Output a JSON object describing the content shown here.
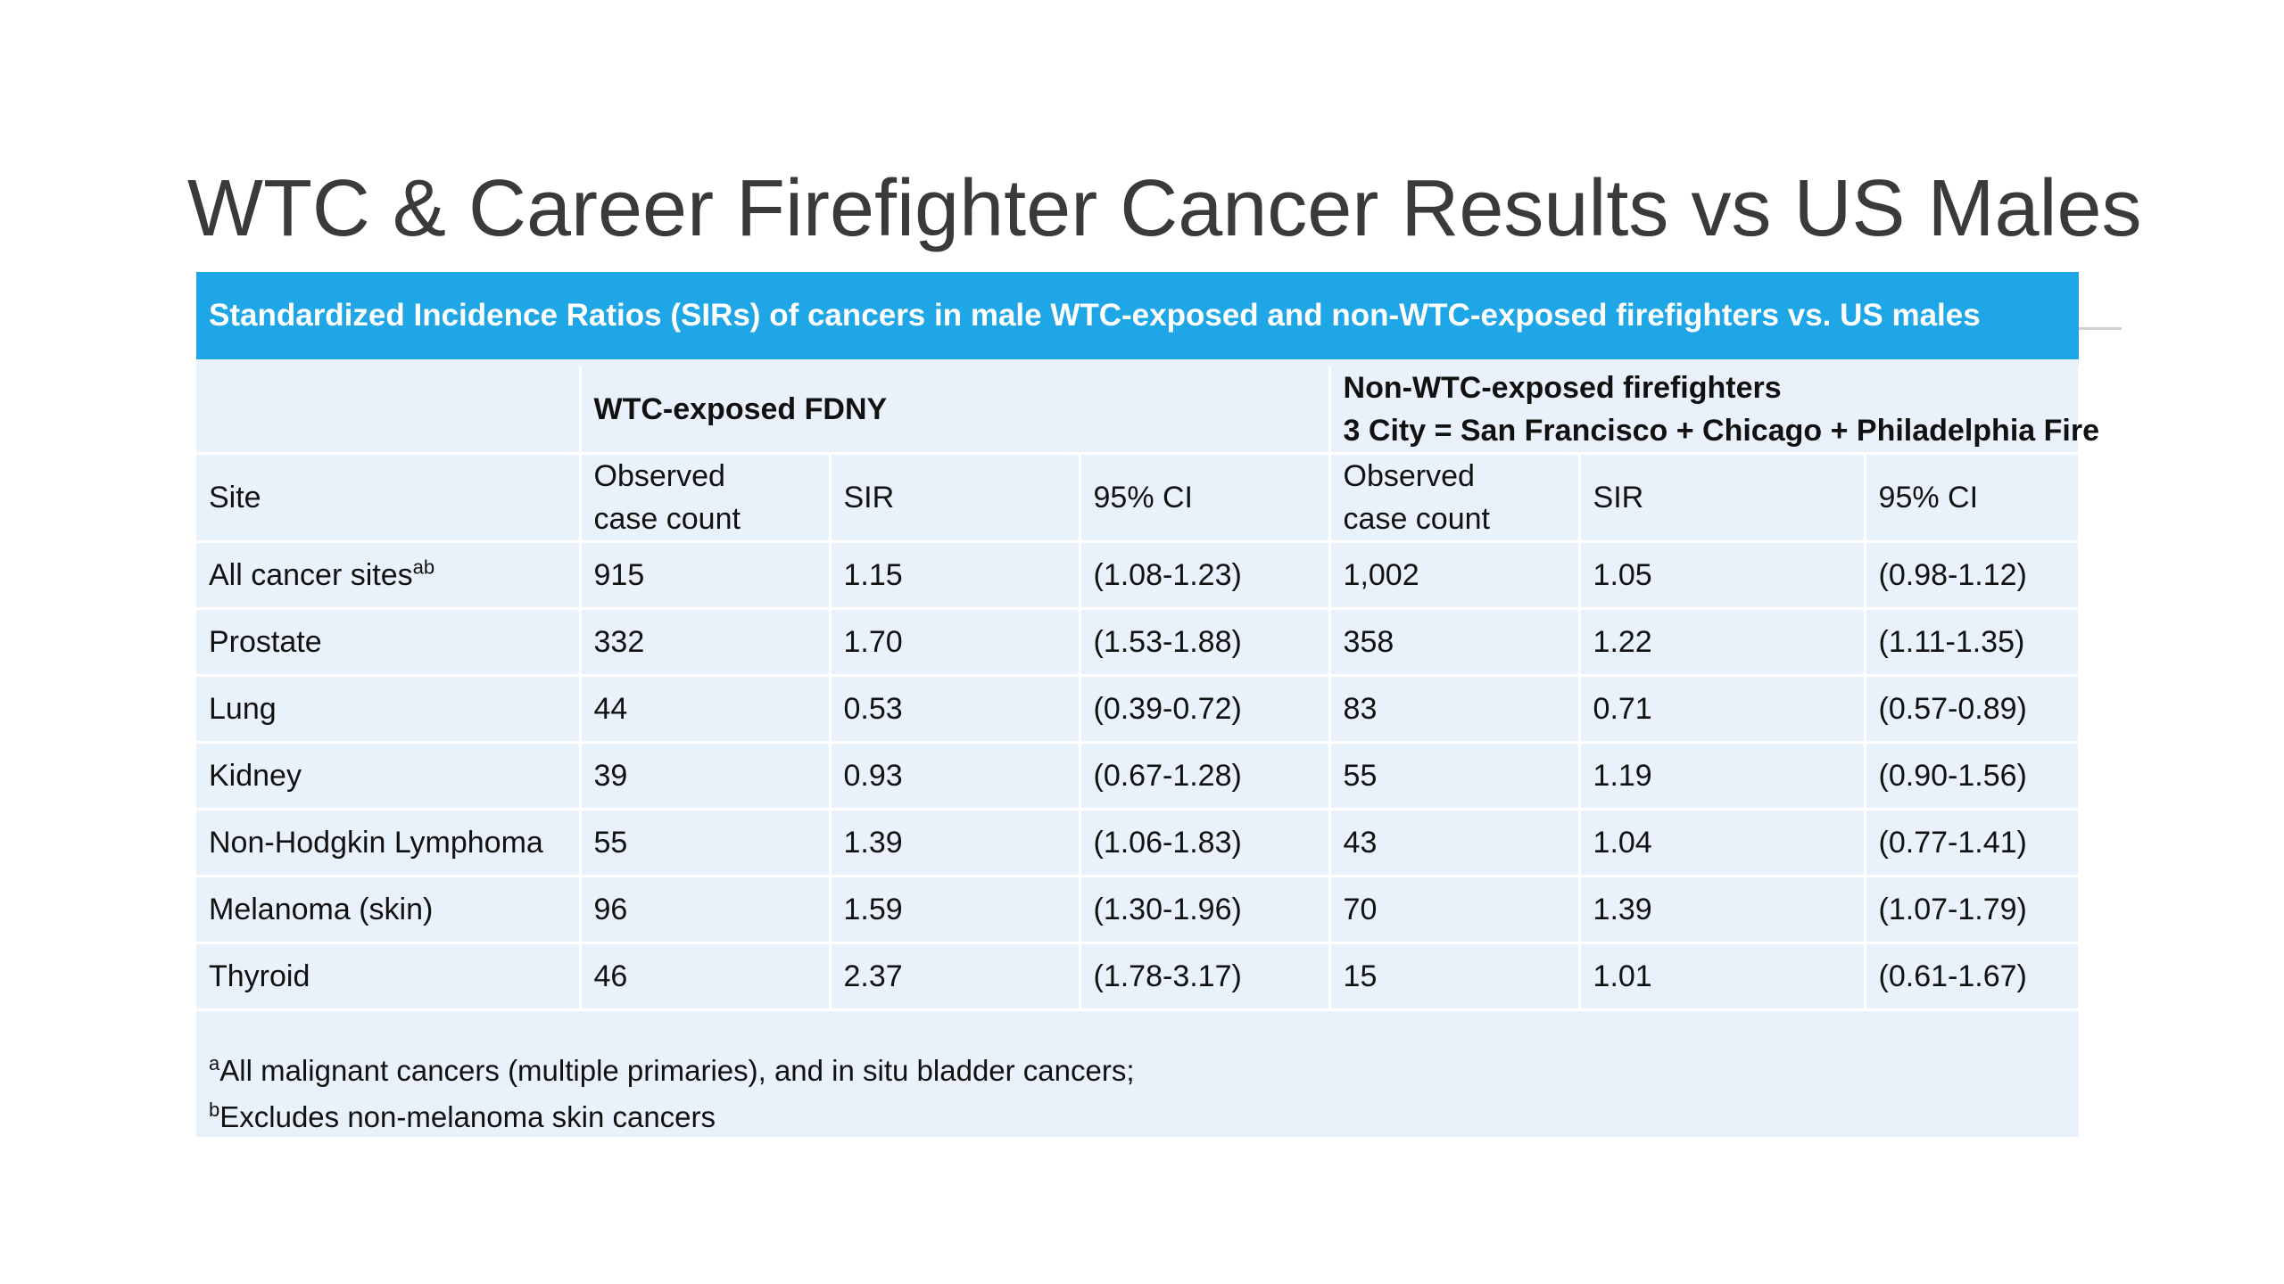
{
  "slide": {
    "title": "WTC & Career Firefighter Cancer Results vs US Males"
  },
  "banner": {
    "text": "Standardized Incidence Ratios (SIRs) of cancers in male WTC-exposed and non-WTC-exposed firefighters vs. US males",
    "color": "#1ea6e6"
  },
  "table": {
    "group_headers": {
      "wtc": "WTC-exposed FDNY",
      "non_wtc_line1": "Non-WTC-exposed firefighters",
      "non_wtc_line2": "3 City = San Francisco + Chicago + Philadelphia Fire"
    },
    "column_headers": {
      "site": "Site",
      "observed_line1": "Observed",
      "observed_line2": "case count",
      "sir": "SIR",
      "ci": "95% CI"
    },
    "rows": [
      {
        "site": "All cancer sites",
        "site_sup": "ab",
        "wtc_count": "915",
        "wtc_sir": "1.15",
        "wtc_ci": "(1.08-1.23)",
        "non_count": "1,002",
        "non_sir": "1.05",
        "non_ci": "(0.98-1.12)"
      },
      {
        "site": "Prostate",
        "site_sup": "",
        "wtc_count": "332",
        "wtc_sir": "1.70",
        "wtc_ci": "(1.53-1.88)",
        "non_count": "358",
        "non_sir": "1.22",
        "non_ci": "(1.11-1.35)"
      },
      {
        "site": "Lung",
        "site_sup": "",
        "wtc_count": "44",
        "wtc_sir": "0.53",
        "wtc_ci": "(0.39-0.72)",
        "non_count": "83",
        "non_sir": "0.71",
        "non_ci": "(0.57-0.89)"
      },
      {
        "site": "Kidney",
        "site_sup": "",
        "wtc_count": "39",
        "wtc_sir": "0.93",
        "wtc_ci": "(0.67-1.28)",
        "non_count": "55",
        "non_sir": "1.19",
        "non_ci": "(0.90-1.56)"
      },
      {
        "site": "Non-Hodgkin Lymphoma",
        "site_sup": "",
        "wtc_count": "55",
        "wtc_sir": "1.39",
        "wtc_ci": "(1.06-1.83)",
        "non_count": "43",
        "non_sir": "1.04",
        "non_ci": "(0.77-1.41)"
      },
      {
        "site": "Melanoma (skin)",
        "site_sup": "",
        "wtc_count": "96",
        "wtc_sir": "1.59",
        "wtc_ci": "(1.30-1.96)",
        "non_count": "70",
        "non_sir": "1.39",
        "non_ci": "(1.07-1.79)"
      },
      {
        "site": "Thyroid",
        "site_sup": "",
        "wtc_count": "46",
        "wtc_sir": "2.37",
        "wtc_ci": "(1.78-3.17)",
        "non_count": "15",
        "non_sir": "1.01",
        "non_ci": "(0.61-1.67)"
      }
    ]
  },
  "footnotes": {
    "a_marker": "a",
    "a_text": "All malignant cancers (multiple primaries), and in situ bladder cancers;",
    "b_marker": "b",
    "b_text": "Excludes non-melanoma skin cancers"
  }
}
